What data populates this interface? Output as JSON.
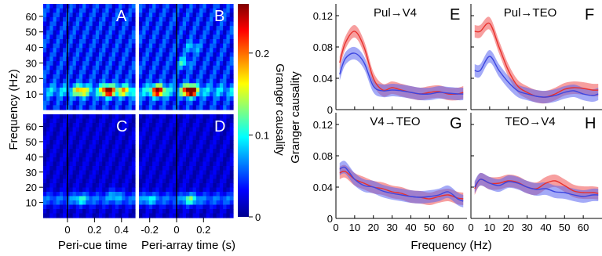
{
  "heatmaps": {
    "type": "heatmap",
    "ylabel": "Frequency (Hz)",
    "yticks": [
      "10",
      "20",
      "30",
      "40",
      "50",
      "60"
    ],
    "ylim": [
      0,
      68
    ],
    "xlabel_left": "Peri-cue time",
    "xlabel_right": "Peri-array time (s)",
    "xticks_left": [
      "0",
      "0.2",
      "0.4"
    ],
    "xticks_right": [
      "-0.2",
      "0",
      "0.2"
    ],
    "xlim_left": [
      -0.18,
      0.5
    ],
    "xlim_right": [
      -0.28,
      0.42
    ],
    "panels": [
      {
        "label": "A",
        "row": 0,
        "side": "cue",
        "hotspots": [
          {
            "t": 0.3,
            "f": 12,
            "v": 0.21
          },
          {
            "t": 0.1,
            "f": 12,
            "v": 0.12
          },
          {
            "t": 0.42,
            "f": 12,
            "v": 0.1
          }
        ],
        "base": 0.04
      },
      {
        "label": "B",
        "row": 0,
        "side": "array",
        "hotspots": [
          {
            "t": -0.14,
            "f": 12,
            "v": 0.2
          },
          {
            "t": 0.1,
            "f": 12,
            "v": 0.26
          },
          {
            "t": 0.05,
            "f": 30,
            "v": 0.06
          },
          {
            "t": 0.12,
            "f": 40,
            "v": 0.05
          }
        ],
        "base": 0.04
      },
      {
        "label": "C",
        "row": 1,
        "side": "cue",
        "hotspots": [
          {
            "t": 0.1,
            "f": 12,
            "v": 0.05
          },
          {
            "t": 0.35,
            "f": 15,
            "v": 0.04
          }
        ],
        "base": 0.02
      },
      {
        "label": "D",
        "row": 1,
        "side": "array",
        "hotspots": [
          {
            "t": 0.1,
            "f": 12,
            "v": 0.07
          },
          {
            "t": -0.2,
            "f": 12,
            "v": 0.04
          }
        ],
        "base": 0.02
      }
    ],
    "colorbar": {
      "label": "Granger causality",
      "ticks": [
        "0",
        "0.1",
        "0.2"
      ],
      "range": [
        0,
        0.26
      ]
    }
  },
  "chart_data": [
    {
      "type": "line",
      "title": "Pul→V4",
      "label": "E",
      "x": [
        2,
        5,
        10,
        15,
        20,
        25,
        30,
        35,
        40,
        45,
        50,
        55,
        60,
        65,
        68
      ],
      "series": [
        {
          "color": "#e8302c",
          "values": [
            0.06,
            0.085,
            0.1,
            0.08,
            0.04,
            0.025,
            0.028,
            0.025,
            0.022,
            0.02,
            0.022,
            0.023,
            0.02,
            0.02,
            0.022
          ]
        },
        {
          "color": "#3c46e0",
          "values": [
            0.045,
            0.065,
            0.072,
            0.06,
            0.03,
            0.024,
            0.025,
            0.024,
            0.022,
            0.02,
            0.02,
            0.022,
            0.021,
            0.02,
            0.02
          ]
        }
      ]
    },
    {
      "type": "line",
      "title": "Pul→TEO",
      "label": "F",
      "x": [
        2,
        5,
        10,
        15,
        20,
        25,
        30,
        35,
        40,
        45,
        50,
        55,
        60,
        65,
        68
      ],
      "series": [
        {
          "color": "#e8302c",
          "values": [
            0.1,
            0.1,
            0.11,
            0.08,
            0.05,
            0.03,
            0.022,
            0.017,
            0.016,
            0.02,
            0.026,
            0.028,
            0.027,
            0.025,
            0.025
          ]
        },
        {
          "color": "#3c46e0",
          "values": [
            0.05,
            0.05,
            0.068,
            0.05,
            0.035,
            0.024,
            0.02,
            0.017,
            0.016,
            0.018,
            0.022,
            0.024,
            0.02,
            0.018,
            0.02
          ]
        }
      ]
    },
    {
      "type": "line",
      "title": "V4→TEO",
      "label": "G",
      "x": [
        2,
        5,
        10,
        15,
        20,
        25,
        30,
        35,
        40,
        45,
        50,
        55,
        60,
        65,
        68
      ],
      "series": [
        {
          "color": "#e8302c",
          "values": [
            0.058,
            0.06,
            0.05,
            0.045,
            0.04,
            0.038,
            0.034,
            0.032,
            0.028,
            0.027,
            0.025,
            0.028,
            0.03,
            0.026,
            0.025
          ]
        },
        {
          "color": "#3c46e0",
          "values": [
            0.063,
            0.065,
            0.05,
            0.042,
            0.04,
            0.035,
            0.032,
            0.03,
            0.028,
            0.027,
            0.028,
            0.03,
            0.034,
            0.025,
            0.022
          ]
        }
      ]
    },
    {
      "type": "line",
      "title": "TEO→V4",
      "label": "H",
      "x": [
        2,
        5,
        10,
        15,
        20,
        25,
        30,
        35,
        40,
        45,
        50,
        55,
        60,
        65,
        68
      ],
      "series": [
        {
          "color": "#e8302c",
          "values": [
            0.038,
            0.05,
            0.045,
            0.045,
            0.048,
            0.046,
            0.04,
            0.038,
            0.045,
            0.048,
            0.042,
            0.035,
            0.033,
            0.033,
            0.032
          ]
        },
        {
          "color": "#3c46e0",
          "values": [
            0.04,
            0.05,
            0.045,
            0.042,
            0.047,
            0.045,
            0.04,
            0.037,
            0.038,
            0.034,
            0.033,
            0.03,
            0.028,
            0.03,
            0.03
          ]
        }
      ]
    }
  ],
  "lineaxes": {
    "ylabel": "Granger causality",
    "xlabel": "Frequency (Hz)",
    "yticks": [
      "0",
      "0.04",
      "0.08",
      "0.12"
    ],
    "ylim": [
      0,
      0.135
    ],
    "xticks": [
      "0",
      "10",
      "20",
      "30",
      "40",
      "50",
      "60"
    ],
    "xlim": [
      0,
      70
    ]
  }
}
